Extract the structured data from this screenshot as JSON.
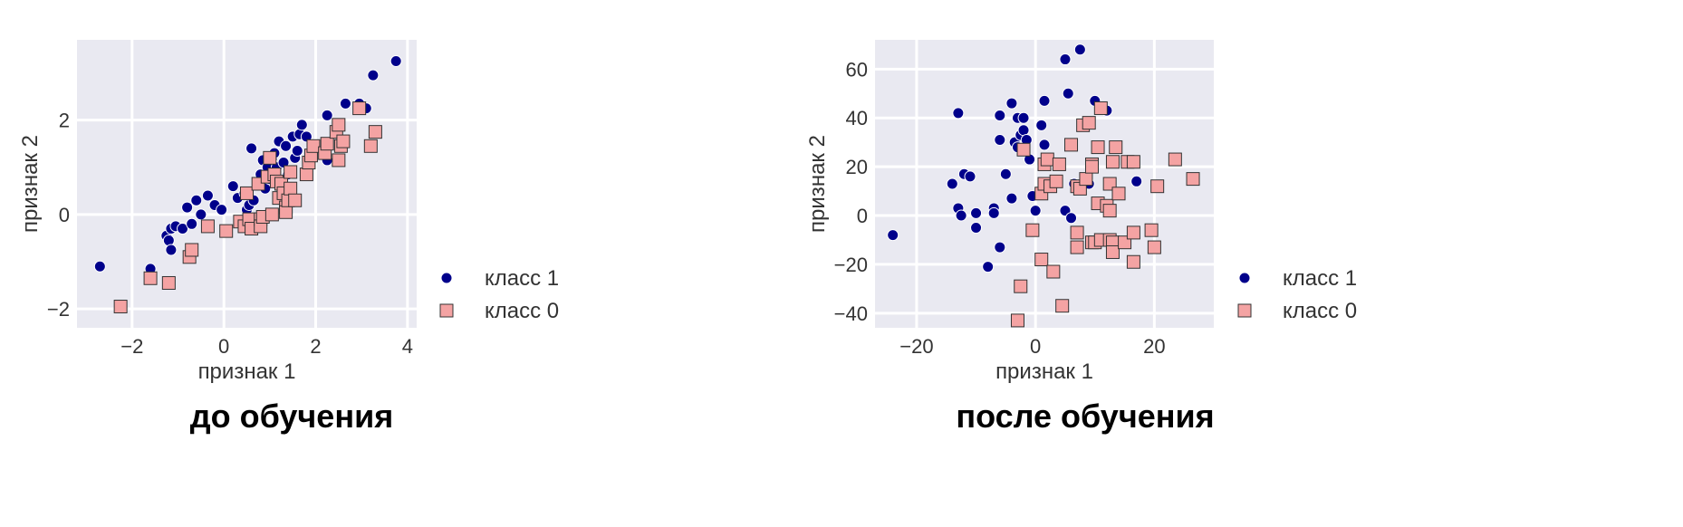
{
  "chart_data": [
    {
      "type": "scatter",
      "caption": "до обучения",
      "xlabel": "признак 1",
      "ylabel": "признак 2",
      "xlim": [
        -3.2,
        4.2
      ],
      "ylim": [
        -2.4,
        3.7
      ],
      "xticks": [
        -2,
        0,
        2,
        4
      ],
      "yticks": [
        -2,
        0,
        2
      ],
      "xtick_labels": [
        "−2",
        "0",
        "2",
        "4"
      ],
      "ytick_labels": [
        "−2",
        "0",
        "2"
      ],
      "grid": true,
      "legend_position": "right",
      "series": [
        {
          "name": "класс 1",
          "marker": "circle",
          "color": "#00008b",
          "points": [
            [
              -2.7,
              -1.1
            ],
            [
              -1.6,
              -1.15
            ],
            [
              -1.25,
              -0.45
            ],
            [
              -1.2,
              -0.55
            ],
            [
              -1.15,
              -0.3
            ],
            [
              -1.15,
              -0.75
            ],
            [
              -1.05,
              -0.25
            ],
            [
              -0.9,
              -0.3
            ],
            [
              -0.8,
              0.15
            ],
            [
              -0.7,
              -0.2
            ],
            [
              -0.6,
              0.3
            ],
            [
              -0.5,
              0.0
            ],
            [
              -0.35,
              0.4
            ],
            [
              -0.2,
              0.2
            ],
            [
              -0.05,
              0.1
            ],
            [
              0.2,
              0.6
            ],
            [
              0.3,
              0.35
            ],
            [
              0.45,
              0.45
            ],
            [
              0.5,
              0.1
            ],
            [
              0.55,
              0.2
            ],
            [
              0.6,
              1.4
            ],
            [
              0.65,
              0.3
            ],
            [
              0.8,
              0.85
            ],
            [
              0.85,
              1.15
            ],
            [
              0.9,
              0.55
            ],
            [
              0.95,
              1.0
            ],
            [
              1.0,
              0.75
            ],
            [
              1.05,
              1.2
            ],
            [
              1.1,
              1.3
            ],
            [
              1.15,
              1.0
            ],
            [
              1.2,
              1.55
            ],
            [
              1.3,
              1.1
            ],
            [
              1.35,
              1.45
            ],
            [
              1.4,
              0.85
            ],
            [
              1.5,
              1.65
            ],
            [
              1.55,
              1.2
            ],
            [
              1.6,
              1.35
            ],
            [
              1.65,
              1.7
            ],
            [
              1.7,
              1.9
            ],
            [
              1.8,
              1.65
            ],
            [
              2.25,
              1.15
            ],
            [
              2.25,
              2.1
            ],
            [
              2.65,
              2.35
            ],
            [
              2.95,
              2.35
            ],
            [
              3.1,
              2.25
            ],
            [
              3.25,
              2.95
            ],
            [
              3.75,
              3.25
            ]
          ]
        },
        {
          "name": "класс 0",
          "marker": "square",
          "color": "#f4a3a3",
          "points": [
            [
              -2.25,
              -1.95
            ],
            [
              -1.6,
              -1.35
            ],
            [
              -1.2,
              -1.45
            ],
            [
              -0.75,
              -0.9
            ],
            [
              -0.7,
              -0.75
            ],
            [
              -0.35,
              -0.25
            ],
            [
              0.05,
              -0.35
            ],
            [
              0.35,
              -0.15
            ],
            [
              0.45,
              -0.25
            ],
            [
              0.5,
              0.45
            ],
            [
              0.55,
              -0.1
            ],
            [
              0.6,
              -0.3
            ],
            [
              0.75,
              0.65
            ],
            [
              0.8,
              -0.1
            ],
            [
              0.8,
              -0.25
            ],
            [
              0.85,
              -0.05
            ],
            [
              0.95,
              0.8
            ],
            [
              1.0,
              1.2
            ],
            [
              1.05,
              0.0
            ],
            [
              1.1,
              0.85
            ],
            [
              1.15,
              0.7
            ],
            [
              1.2,
              0.35
            ],
            [
              1.25,
              0.65
            ],
            [
              1.3,
              0.45
            ],
            [
              1.35,
              0.15
            ],
            [
              1.35,
              0.05
            ],
            [
              1.4,
              0.3
            ],
            [
              1.45,
              0.9
            ],
            [
              1.45,
              0.55
            ],
            [
              1.55,
              0.3
            ],
            [
              1.8,
              0.85
            ],
            [
              1.85,
              1.1
            ],
            [
              1.9,
              1.25
            ],
            [
              1.95,
              1.45
            ],
            [
              2.2,
              1.3
            ],
            [
              2.25,
              1.5
            ],
            [
              2.45,
              1.75
            ],
            [
              2.5,
              1.9
            ],
            [
              2.5,
              1.15
            ],
            [
              2.55,
              1.45
            ],
            [
              2.6,
              1.55
            ],
            [
              2.95,
              2.25
            ],
            [
              3.2,
              1.45
            ],
            [
              3.3,
              1.75
            ]
          ]
        }
      ]
    },
    {
      "type": "scatter",
      "caption": "после обучения",
      "xlabel": "признак 1",
      "ylabel": "признак 2",
      "xlim": [
        -27,
        30
      ],
      "ylim": [
        -46,
        72
      ],
      "xticks": [
        -20,
        0,
        20
      ],
      "yticks": [
        -40,
        -20,
        0,
        20,
        40,
        60
      ],
      "xtick_labels": [
        "−20",
        "0",
        "20"
      ],
      "ytick_labels": [
        "−40",
        "−20",
        "0",
        "20",
        "40",
        "60"
      ],
      "grid": true,
      "legend_position": "right",
      "series": [
        {
          "name": "класс 1",
          "marker": "circle",
          "color": "#00008b",
          "points": [
            [
              -24,
              -8
            ],
            [
              -14,
              13
            ],
            [
              -13,
              42
            ],
            [
              -13,
              3
            ],
            [
              -12,
              17
            ],
            [
              -12.5,
              0
            ],
            [
              -11,
              16
            ],
            [
              -10,
              -5
            ],
            [
              -10,
              1
            ],
            [
              -8,
              -21
            ],
            [
              -7,
              3
            ],
            [
              -7,
              1
            ],
            [
              -6,
              41
            ],
            [
              -6,
              31
            ],
            [
              -6,
              -13
            ],
            [
              -5,
              17
            ],
            [
              -4,
              7
            ],
            [
              -4,
              46
            ],
            [
              -3.5,
              30
            ],
            [
              -3,
              40
            ],
            [
              -3,
              28
            ],
            [
              -2.5,
              33
            ],
            [
              -2,
              35
            ],
            [
              -2,
              40
            ],
            [
              -1.5,
              31
            ],
            [
              -1,
              23
            ],
            [
              -0.5,
              8
            ],
            [
              0,
              2
            ],
            [
              1,
              37
            ],
            [
              1.5,
              29
            ],
            [
              1.5,
              47
            ],
            [
              5,
              64
            ],
            [
              5,
              2
            ],
            [
              5.5,
              50
            ],
            [
              6,
              -1
            ],
            [
              6.5,
              13
            ],
            [
              7.5,
              68
            ],
            [
              9,
              13
            ],
            [
              10,
              47
            ],
            [
              12,
              43
            ],
            [
              17,
              14
            ]
          ]
        },
        {
          "name": "класс 0",
          "marker": "square",
          "color": "#f4a3a3",
          "points": [
            [
              -3,
              -43
            ],
            [
              -2.5,
              -29
            ],
            [
              -2,
              27
            ],
            [
              -0.5,
              -6
            ],
            [
              1,
              9
            ],
            [
              1,
              -18
            ],
            [
              1.5,
              21
            ],
            [
              1.5,
              13
            ],
            [
              2,
              23
            ],
            [
              2.5,
              12
            ],
            [
              3,
              -23
            ],
            [
              3.5,
              14
            ],
            [
              4,
              21
            ],
            [
              4.5,
              -37
            ],
            [
              6,
              29
            ],
            [
              7,
              12
            ],
            [
              7,
              -7
            ],
            [
              7,
              -13
            ],
            [
              7.5,
              11
            ],
            [
              8,
              37
            ],
            [
              8.5,
              15
            ],
            [
              9,
              38
            ],
            [
              9.5,
              -11
            ],
            [
              9.5,
              21
            ],
            [
              9.5,
              20
            ],
            [
              10,
              -11
            ],
            [
              10.5,
              28
            ],
            [
              10.5,
              5
            ],
            [
              11,
              44
            ],
            [
              11,
              -10
            ],
            [
              12,
              4
            ],
            [
              12.5,
              -10
            ],
            [
              12.5,
              13
            ],
            [
              12.5,
              2
            ],
            [
              13,
              -11
            ],
            [
              13,
              -15
            ],
            [
              13,
              22
            ],
            [
              13.5,
              28
            ],
            [
              14,
              9
            ],
            [
              15,
              -11
            ],
            [
              15.5,
              22
            ],
            [
              16.5,
              22
            ],
            [
              16.5,
              -7
            ],
            [
              16.5,
              -19
            ],
            [
              19.5,
              -6
            ],
            [
              20,
              -13
            ],
            [
              20.5,
              12
            ],
            [
              23.5,
              23
            ],
            [
              26.5,
              15
            ]
          ]
        }
      ]
    }
  ]
}
